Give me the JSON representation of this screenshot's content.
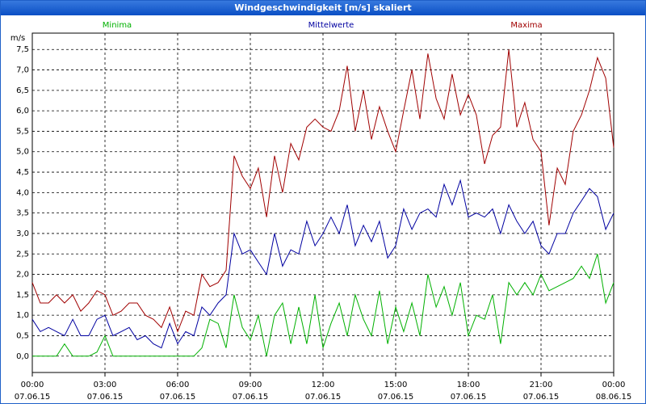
{
  "chart_data": {
    "type": "line",
    "title": "Windgeschwindigkeit [m/s] skaliert",
    "y_unit": "m/s",
    "x": [
      0,
      0.33,
      0.67,
      1,
      1.33,
      1.67,
      2,
      2.33,
      2.67,
      3,
      3.33,
      3.67,
      4,
      4.33,
      4.67,
      5,
      5.33,
      5.67,
      6,
      6.33,
      6.67,
      7,
      7.33,
      7.67,
      8,
      8.33,
      8.67,
      9,
      9.33,
      9.67,
      10,
      10.33,
      10.67,
      11,
      11.33,
      11.67,
      12,
      12.33,
      12.67,
      13,
      13.33,
      13.67,
      14,
      14.33,
      14.67,
      15,
      15.33,
      15.67,
      16,
      16.33,
      16.67,
      17,
      17.33,
      17.67,
      18,
      18.33,
      18.67,
      19,
      19.33,
      19.67,
      20,
      20.33,
      20.67,
      21,
      21.33,
      21.67,
      22,
      22.33,
      22.67,
      23,
      23.33,
      23.67,
      24
    ],
    "series": [
      {
        "name": "Minima",
        "color": "#00b000",
        "values": [
          0,
          0,
          0,
          0,
          0.3,
          0,
          0,
          0,
          0.1,
          0.5,
          0,
          0,
          0,
          0,
          0,
          0,
          0,
          0,
          0,
          0,
          0,
          0.2,
          0.9,
          0.8,
          0.2,
          1.5,
          0.7,
          0.4,
          1.0,
          0,
          1.0,
          1.3,
          0.3,
          1.2,
          0.3,
          1.5,
          0.2,
          0.8,
          1.3,
          0.5,
          1.5,
          0.9,
          0.5,
          1.6,
          0.3,
          1.2,
          0.6,
          1.3,
          0.5,
          2.0,
          1.2,
          1.7,
          1.0,
          1.8,
          0.5,
          1.0,
          0.9,
          1.5,
          0.3,
          1.8,
          1.5,
          1.8,
          1.5,
          2.0,
          1.6,
          1.7,
          1.8,
          1.9,
          2.2,
          1.9,
          2.5,
          1.3,
          1.8
        ]
      },
      {
        "name": "Mittelwerte",
        "color": "#0000a0",
        "values": [
          0.9,
          0.6,
          0.7,
          0.6,
          0.5,
          0.9,
          0.5,
          0.5,
          0.9,
          1.0,
          0.5,
          0.6,
          0.7,
          0.4,
          0.5,
          0.3,
          0.2,
          0.8,
          0.3,
          0.6,
          0.5,
          1.2,
          1.0,
          1.3,
          1.5,
          3.0,
          2.5,
          2.6,
          2.3,
          2.0,
          3.0,
          2.2,
          2.6,
          2.5,
          3.3,
          2.7,
          3.0,
          3.4,
          3.0,
          3.7,
          2.7,
          3.2,
          2.8,
          3.3,
          2.4,
          2.7,
          3.6,
          3.1,
          3.5,
          3.6,
          3.4,
          4.2,
          3.7,
          4.3,
          3.4,
          3.5,
          3.4,
          3.6,
          3.0,
          3.7,
          3.3,
          3.0,
          3.3,
          2.7,
          2.5,
          3.0,
          3.0,
          3.5,
          3.8,
          4.1,
          3.9,
          3.1,
          3.5
        ]
      },
      {
        "name": "Maxima",
        "color": "#a00000",
        "values": [
          1.8,
          1.3,
          1.3,
          1.5,
          1.3,
          1.5,
          1.1,
          1.3,
          1.6,
          1.5,
          1.0,
          1.1,
          1.3,
          1.3,
          1.0,
          0.9,
          0.7,
          1.2,
          0.6,
          1.1,
          1.0,
          2.0,
          1.7,
          1.8,
          2.1,
          4.9,
          4.4,
          4.1,
          4.6,
          3.4,
          4.9,
          4.0,
          5.2,
          4.8,
          5.6,
          5.8,
          5.6,
          5.5,
          6.0,
          7.1,
          5.5,
          6.5,
          5.3,
          6.1,
          5.5,
          5.0,
          6.0,
          7.0,
          5.8,
          7.4,
          6.3,
          5.8,
          6.9,
          5.9,
          6.4,
          5.9,
          4.7,
          5.4,
          5.6,
          7.5,
          5.6,
          6.2,
          5.3,
          5.0,
          3.2,
          4.6,
          4.2,
          5.5,
          5.9,
          6.5,
          7.3,
          6.8,
          5.1
        ]
      }
    ],
    "xlim": [
      0,
      24
    ],
    "xticks": [
      {
        "value": 0,
        "label": "00:00"
      },
      {
        "value": 3,
        "label": "03:00"
      },
      {
        "value": 6,
        "label": "06:00"
      },
      {
        "value": 9,
        "label": "09:00"
      },
      {
        "value": 12,
        "label": "12:00"
      },
      {
        "value": 15,
        "label": "15:00"
      },
      {
        "value": 18,
        "label": "18:00"
      },
      {
        "value": 21,
        "label": "21:00"
      },
      {
        "value": 24,
        "label": "00:00"
      }
    ],
    "xtick_dates": [
      "07.06.15",
      "07.06.15",
      "07.06.15",
      "07.06.15",
      "07.06.15",
      "07.06.15",
      "07.06.15",
      "07.06.15",
      "08.06.15"
    ],
    "ylim": [
      -0.4,
      7.9
    ],
    "yticks": [
      {
        "value": 0,
        "label": "0,0"
      },
      {
        "value": 0.5,
        "label": "0,5"
      },
      {
        "value": 1,
        "label": "1,0"
      },
      {
        "value": 1.5,
        "label": "1,5"
      },
      {
        "value": 2,
        "label": "2,0"
      },
      {
        "value": 2.5,
        "label": "2,5"
      },
      {
        "value": 3,
        "label": "3,0"
      },
      {
        "value": 3.5,
        "label": "3,5"
      },
      {
        "value": 4,
        "label": "4,0"
      },
      {
        "value": 4.5,
        "label": "4,5"
      },
      {
        "value": 5,
        "label": "5,0"
      },
      {
        "value": 5.5,
        "label": "5,5"
      },
      {
        "value": 6,
        "label": "6,0"
      },
      {
        "value": 6.5,
        "label": "6,5"
      },
      {
        "value": 7,
        "label": "7,0"
      },
      {
        "value": 7.5,
        "label": "7,5"
      }
    ],
    "grid": true
  }
}
